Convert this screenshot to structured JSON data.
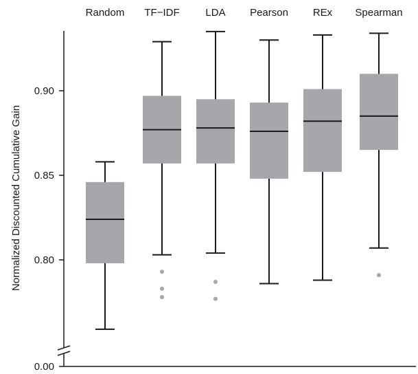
{
  "chart_data": {
    "type": "box",
    "title": "",
    "xlabel": "",
    "ylabel": "Normalized Discounted Cumulative Gain",
    "ylim": [
      0.75,
      0.935
    ],
    "axis_break": true,
    "axis_origin_label": "0.00",
    "yticks": [
      0.8,
      0.85,
      0.9
    ],
    "ytick_labels": [
      "0.80",
      "0.85",
      "0.90"
    ],
    "grid": false,
    "category_label_position": "top",
    "colors": {
      "box": "#a6a7aa",
      "line": "#1a1a1a",
      "outlier": "#a6a7aa"
    },
    "categories": [
      "Random",
      "TF−IDF",
      "LDA",
      "Pearson",
      "REx",
      "Spearman"
    ],
    "boxes": [
      {
        "whisker_low": 0.759,
        "q1": 0.798,
        "median": 0.824,
        "q3": 0.846,
        "whisker_high": 0.858,
        "outliers": []
      },
      {
        "whisker_low": 0.803,
        "q1": 0.857,
        "median": 0.877,
        "q3": 0.897,
        "whisker_high": 0.929,
        "outliers": [
          0.793,
          0.783,
          0.778
        ]
      },
      {
        "whisker_low": 0.804,
        "q1": 0.857,
        "median": 0.878,
        "q3": 0.895,
        "whisker_high": 0.935,
        "outliers": [
          0.787,
          0.777
        ]
      },
      {
        "whisker_low": 0.786,
        "q1": 0.848,
        "median": 0.876,
        "q3": 0.893,
        "whisker_high": 0.93,
        "outliers": []
      },
      {
        "whisker_low": 0.788,
        "q1": 0.852,
        "median": 0.882,
        "q3": 0.901,
        "whisker_high": 0.933,
        "outliers": []
      },
      {
        "whisker_low": 0.807,
        "q1": 0.865,
        "median": 0.885,
        "q3": 0.91,
        "whisker_high": 0.934,
        "outliers": [
          0.791
        ]
      }
    ]
  }
}
